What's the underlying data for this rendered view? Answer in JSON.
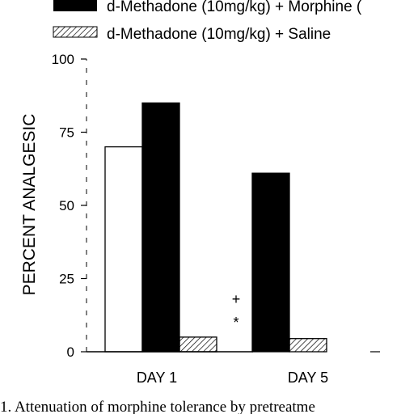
{
  "chart_data": {
    "type": "bar",
    "ylabel": "PERCENT ANALGESIC",
    "ylim": [
      0,
      100
    ],
    "yticks": [
      "0",
      "25",
      "50",
      "75",
      "100"
    ],
    "ytick_values": [
      0,
      25,
      50,
      75,
      100
    ],
    "categories": [
      "DAY 1",
      "DAY 5"
    ],
    "series": [
      {
        "name": "",
        "fill": "white",
        "values": [
          70,
          0
        ]
      },
      {
        "name": "d-Methadone (10mg/kg) + Morphine (",
        "fill": "black",
        "values": [
          85,
          61
        ]
      },
      {
        "name": "d-Methadone (10mg/kg) + Saline",
        "fill": "hatch",
        "values": [
          5,
          4.5
        ]
      }
    ],
    "annotations": [
      {
        "text": "+",
        "category": "DAY 5",
        "value": 18
      },
      {
        "text": "*",
        "category": "DAY 5",
        "value": 10
      }
    ],
    "legend_placement": "top"
  },
  "caption": "1. Attenuation of morphine tolerance by pretreatme",
  "colors": {
    "ink": "#000000",
    "background": "#ffffff"
  }
}
